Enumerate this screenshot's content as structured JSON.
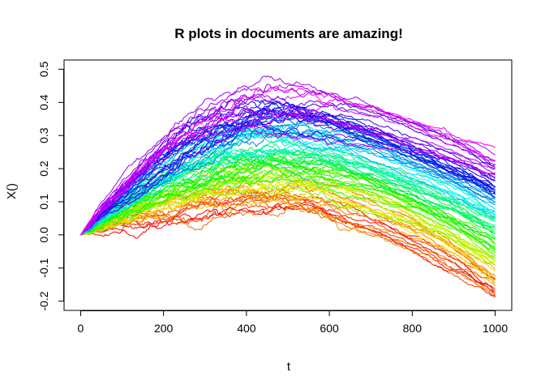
{
  "chart_data": {
    "type": "line",
    "title": "R plots in documents are amazing!",
    "xlabel": "t",
    "ylabel": "X()",
    "xlim": [
      0,
      1000
    ],
    "ylim": [
      -0.2,
      0.5
    ],
    "xticks": [
      0,
      200,
      400,
      600,
      800,
      1000
    ],
    "yticks": [
      -0.2,
      -0.1,
      0.0,
      0.1,
      0.2,
      0.3,
      0.4,
      0.5
    ],
    "xtick_labels": [
      "0",
      "200",
      "400",
      "600",
      "800",
      "1000"
    ],
    "ytick_labels": [
      "-0.2",
      "-0.1",
      "0.0",
      "0.1",
      "0.2",
      "0.3",
      "0.4",
      "0.5"
    ],
    "series_count": 100,
    "series_description": "100 Brownian-motion-with-drift paths, colored by a rainbow palette from red to magenta; each path starts near 0 at t=0, rises to a peak around t=400-600 and declines toward t=1000",
    "series_model": {
      "peak_range": [
        0.1,
        0.47
      ],
      "peak_t_range": [
        380,
        560
      ],
      "end_value_range": [
        -0.18,
        0.23
      ],
      "noise_scale": 0.012
    },
    "grid": false,
    "legend": "none"
  }
}
